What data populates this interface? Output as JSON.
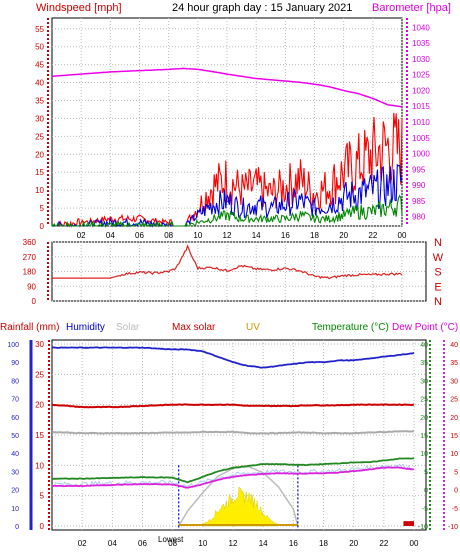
{
  "chart_data": {
    "type": "line",
    "title": "24 hour graph day : 15 January 2021",
    "x_tick_labels": [
      "02",
      "04",
      "06",
      "08",
      "10",
      "12",
      "14",
      "16",
      "18",
      "20",
      "22",
      "00"
    ],
    "wind": {
      "left_axis_label": "Windspeed [mph]",
      "right_axis_label": "Barometer [hpa]",
      "ylim": [
        0,
        58
      ],
      "yticks": [
        0,
        5,
        10,
        15,
        20,
        25,
        30,
        35,
        40,
        45,
        50,
        55
      ],
      "baro_ylim": [
        977,
        1043
      ],
      "baro_ticks": [
        980,
        985,
        990,
        995,
        1000,
        1005,
        1010,
        1015,
        1020,
        1025,
        1030,
        1035,
        1040
      ],
      "x_hours": [
        0,
        2,
        4,
        6,
        8,
        9,
        10,
        11,
        12,
        13,
        14,
        15,
        16,
        17,
        18,
        19,
        20,
        21,
        22,
        23,
        24
      ],
      "series": [
        {
          "name": "Barometer [hpa]",
          "color": "#ee00ee",
          "axis": "baro",
          "values": [
            1024.5,
            1025.2,
            1025.9,
            1026.3,
            1026.7,
            1027.0,
            1026.7,
            1026.0,
            1025.2,
            1024.5,
            1023.8,
            1023.4,
            1023.0,
            1022.6,
            1022.0,
            1021.2,
            1020.0,
            1019.0,
            1017.5,
            1015.5,
            1014.8
          ]
        },
        {
          "name": "Gust",
          "color": "#ff0000",
          "axis": "wind",
          "values": [
            0,
            1,
            2,
            2,
            1,
            0,
            5,
            11,
            13,
            10,
            11,
            9,
            11,
            13,
            9,
            11,
            15,
            17,
            20,
            22,
            21
          ]
        },
        {
          "name": "Average",
          "color": "#0000dd",
          "axis": "wind",
          "values": [
            0,
            0,
            1,
            1,
            0,
            0,
            3,
            6,
            7,
            5,
            6,
            5,
            6,
            7,
            5,
            6,
            8,
            9,
            10,
            11,
            13
          ]
        },
        {
          "name": "Minimum",
          "color": "#008800",
          "axis": "wind",
          "values": [
            0,
            0,
            0,
            0,
            0,
            0,
            1,
            2,
            3,
            2,
            2,
            2,
            2,
            3,
            2,
            2,
            3,
            4,
            4,
            5,
            6
          ]
        }
      ]
    },
    "direction": {
      "ylim": [
        0,
        360
      ],
      "yticks": [
        0,
        90,
        180,
        270,
        360
      ],
      "right_labels": [
        "N",
        "W",
        "S",
        "E",
        "N"
      ],
      "x_hours": [
        0,
        2,
        4,
        5,
        6,
        7,
        8,
        8.5,
        9,
        9.3,
        9.6,
        10,
        11,
        12,
        13,
        14,
        15,
        16,
        17,
        18,
        19,
        20,
        21,
        22,
        23,
        24
      ],
      "values": [
        140,
        140,
        140,
        165,
        175,
        170,
        180,
        200,
        280,
        330,
        270,
        200,
        205,
        185,
        215,
        195,
        190,
        200,
        185,
        150,
        140,
        155,
        160,
        160,
        165,
        165
      ],
      "color": "#dd2222"
    },
    "weather": {
      "legend": [
        {
          "label": "Rainfall (mm)",
          "color": "#cc0000"
        },
        {
          "label": "Humidity",
          "color": "#0000cc"
        },
        {
          "label": "Solar",
          "color": "#bbbbbb"
        },
        {
          "label": "Max solar",
          "color": "#cc0000"
        },
        {
          "label": "UV",
          "color": "#cc9900"
        },
        {
          "label": "Temperature (°C)",
          "color": "#008800"
        },
        {
          "label": "Dew Point (°C)",
          "color": "#dd00dd"
        }
      ],
      "left_ticks_outer": [
        0,
        10,
        20,
        30,
        40,
        50,
        60,
        70,
        80,
        90,
        100
      ],
      "left_ticks_inner": [
        0,
        5,
        10,
        15,
        20,
        25,
        30
      ],
      "right_ticks_temp": [
        -10,
        -5,
        0,
        5,
        10,
        15,
        20,
        25,
        30,
        35,
        40
      ],
      "right_ticks_dew": [
        -10,
        -5,
        0,
        5,
        10,
        15,
        20,
        25,
        30,
        35,
        40
      ],
      "rain_axis_max": 30,
      "humidity_axis_max": 100,
      "temp_axis": [
        -10,
        40
      ],
      "x_hours": [
        0,
        2,
        4,
        6,
        8,
        9,
        10,
        11,
        12,
        13,
        14,
        15,
        16,
        17,
        18,
        19,
        20,
        21,
        22,
        23,
        24
      ],
      "humidity": [
        98,
        98,
        98,
        98,
        97,
        97,
        96,
        93,
        90,
        88,
        87,
        88,
        89,
        90,
        90,
        91,
        91,
        92,
        93,
        94,
        95
      ],
      "rainfall_line": [
        20,
        19.6,
        19.6,
        19.8,
        20,
        20,
        20,
        20,
        20,
        19.8,
        19.8,
        19.8,
        19.8,
        19.9,
        19.9,
        19.9,
        20,
        20,
        20,
        20,
        20
      ],
      "solar_line": [
        15.5,
        15.3,
        15.3,
        15.3,
        15.4,
        15.4,
        15.5,
        15.5,
        15.5,
        15.3,
        15.3,
        15.3,
        15.4,
        15.4,
        15.3,
        15.3,
        15.3,
        15.4,
        15.5,
        15.6,
        15.6
      ],
      "temperature": [
        3,
        3,
        3.2,
        3.4,
        3.3,
        2,
        3.5,
        5,
        6,
        6.5,
        7,
        7,
        6.8,
        6.8,
        7,
        7.2,
        7.5,
        7.5,
        8,
        8.5,
        8.6
      ],
      "dew_point": [
        1,
        1,
        1.3,
        1.5,
        1.4,
        0.5,
        1.5,
        2.7,
        3.5,
        4,
        4.3,
        4.5,
        4.4,
        4.4,
        4.5,
        4.7,
        5.1,
        5.5,
        6,
        6.1,
        5.5
      ],
      "solar_x": [
        10,
        10.5,
        11,
        11.5,
        12,
        12.3,
        12.6,
        13,
        13.3,
        13.6,
        14,
        14.5,
        15
      ],
      "solar_values": [
        0.3,
        1.0,
        2.6,
        3.6,
        4.7,
        5.5,
        4.8,
        5.0,
        4.1,
        3.7,
        2.0,
        1.0,
        0.2
      ],
      "max_solar_x": [
        8.4,
        9,
        10,
        11,
        12,
        13,
        14,
        15,
        16,
        16.3
      ],
      "max_solar_values": [
        0,
        2.5,
        5.5,
        8.2,
        9.5,
        9.8,
        8.8,
        6.5,
        2.8,
        0
      ],
      "sunrise_hour": 8.4,
      "sunset_hour": 16.3,
      "lowest_label": "Lowest"
    }
  }
}
